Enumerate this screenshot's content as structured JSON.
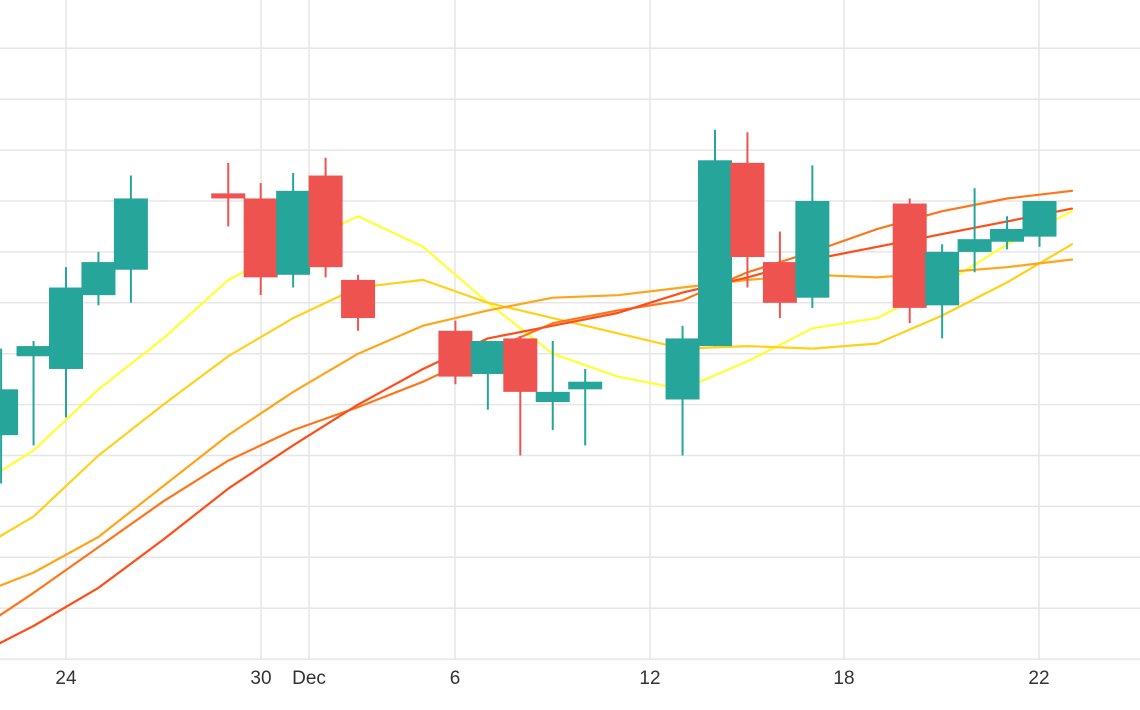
{
  "chart_data": {
    "type": "candlestick",
    "title": "",
    "xlabel": "",
    "ylabel": "",
    "grid": true,
    "x_tick_labels": [
      "24",
      "30",
      "Dec",
      "6",
      "12",
      "18",
      "22"
    ],
    "colors": {
      "up": "#26a69a",
      "down": "#ef5350",
      "grid": "#e6e6e6",
      "background": "#ffffff"
    },
    "candles": [
      {
        "date": "2021-11-22",
        "open": 5.4,
        "high": 7.1,
        "low": 4.45,
        "close": 6.3
      },
      {
        "date": "2021-11-23",
        "open": 6.95,
        "high": 7.25,
        "low": 5.2,
        "close": 7.15
      },
      {
        "date": "2021-11-24",
        "open": 6.7,
        "high": 8.7,
        "low": 5.75,
        "close": 8.3
      },
      {
        "date": "2021-11-25",
        "open": 8.15,
        "high": 9.0,
        "low": 7.95,
        "close": 8.8
      },
      {
        "date": "2021-11-26",
        "open": 8.65,
        "high": 10.5,
        "low": 8.0,
        "close": 10.05
      },
      {
        "date": "2021-11-29",
        "open": 10.15,
        "high": 10.75,
        "low": 9.5,
        "close": 10.05
      },
      {
        "date": "2021-11-30",
        "open": 10.05,
        "high": 10.35,
        "low": 8.15,
        "close": 8.5
      },
      {
        "date": "2021-12-01",
        "open": 8.55,
        "high": 10.55,
        "low": 8.3,
        "close": 10.2
      },
      {
        "date": "2021-12-02",
        "open": 10.5,
        "high": 10.85,
        "low": 8.5,
        "close": 8.7
      },
      {
        "date": "2021-12-03",
        "open": 8.45,
        "high": 8.55,
        "low": 7.45,
        "close": 7.7
      },
      {
        "date": "2021-12-06",
        "open": 7.45,
        "high": 7.65,
        "low": 6.4,
        "close": 6.55
      },
      {
        "date": "2021-12-07",
        "open": 6.6,
        "high": 7.25,
        "low": 5.9,
        "close": 7.25
      },
      {
        "date": "2021-12-08",
        "open": 7.3,
        "high": 7.35,
        "low": 5.0,
        "close": 6.25
      },
      {
        "date": "2021-12-09",
        "open": 6.05,
        "high": 7.25,
        "low": 5.5,
        "close": 6.25
      },
      {
        "date": "2021-12-10",
        "open": 6.3,
        "high": 6.7,
        "low": 5.2,
        "close": 6.45
      },
      {
        "date": "2021-12-13",
        "open": 6.1,
        "high": 7.55,
        "low": 5.0,
        "close": 7.3
      },
      {
        "date": "2021-12-14",
        "open": 7.15,
        "high": 11.4,
        "low": 7.15,
        "close": 10.8
      },
      {
        "date": "2021-12-15",
        "open": 10.75,
        "high": 11.35,
        "low": 8.3,
        "close": 8.9
      },
      {
        "date": "2021-12-16",
        "open": 8.8,
        "high": 9.4,
        "low": 7.7,
        "close": 8.0
      },
      {
        "date": "2021-12-17",
        "open": 8.1,
        "high": 10.7,
        "low": 7.9,
        "close": 10.0
      },
      {
        "date": "2021-12-20",
        "open": 9.95,
        "high": 10.05,
        "low": 7.6,
        "close": 7.9
      },
      {
        "date": "2021-12-21",
        "open": 7.95,
        "high": 9.15,
        "low": 7.3,
        "close": 9.0
      },
      {
        "date": "2021-12-22",
        "open": 9.0,
        "high": 10.25,
        "low": 8.6,
        "close": 9.25
      },
      {
        "date": "2021-12-23",
        "open": 9.2,
        "high": 9.7,
        "low": 9.05,
        "close": 9.45
      },
      {
        "date": "2021-12-24",
        "open": 9.3,
        "high": 9.95,
        "low": 9.1,
        "close": 10.0
      }
    ],
    "series": [
      {
        "color": "#ffff33",
        "x": [
          "2021-11-21",
          "2021-11-23",
          "2021-11-25",
          "2021-11-27",
          "2021-11-29",
          "2021-12-01",
          "2021-12-03",
          "2021-12-05",
          "2021-12-07",
          "2021-12-09",
          "2021-12-11",
          "2021-12-13",
          "2021-12-15",
          "2021-12-17",
          "2021-12-19",
          "2021-12-21",
          "2021-12-23",
          "2021-12-25"
        ],
        "y": [
          4.3,
          5.1,
          6.3,
          7.3,
          8.45,
          9.1,
          9.7,
          9.1,
          8.0,
          7.0,
          6.55,
          6.3,
          6.85,
          7.5,
          7.7,
          8.35,
          9.15,
          9.8
        ]
      },
      {
        "color": "#ffd11a",
        "x": [
          "2021-11-21",
          "2021-11-23",
          "2021-11-25",
          "2021-11-27",
          "2021-11-29",
          "2021-12-01",
          "2021-12-03",
          "2021-12-05",
          "2021-12-07",
          "2021-12-09",
          "2021-12-11",
          "2021-12-13",
          "2021-12-15",
          "2021-12-17",
          "2021-12-19",
          "2021-12-21",
          "2021-12-23",
          "2021-12-25"
        ],
        "y": [
          3.05,
          3.8,
          5.0,
          6.0,
          6.95,
          7.7,
          8.3,
          8.45,
          8.0,
          7.7,
          7.4,
          7.1,
          7.15,
          7.1,
          7.2,
          7.75,
          8.4,
          9.15
        ]
      },
      {
        "color": "#ffa51a",
        "x": [
          "2021-11-21",
          "2021-11-23",
          "2021-11-25",
          "2021-11-27",
          "2021-11-29",
          "2021-12-01",
          "2021-12-03",
          "2021-12-05",
          "2021-12-07",
          "2021-12-09",
          "2021-12-11",
          "2021-12-13",
          "2021-12-15",
          "2021-12-17",
          "2021-12-19",
          "2021-12-21",
          "2021-12-23",
          "2021-12-25"
        ],
        "y": [
          2.2,
          2.7,
          3.4,
          4.4,
          5.4,
          6.25,
          7.0,
          7.55,
          7.85,
          8.1,
          8.15,
          8.3,
          8.45,
          8.55,
          8.5,
          8.6,
          8.7,
          8.85
        ]
      },
      {
        "color": "#ff751a",
        "x": [
          "2021-11-21",
          "2021-11-23",
          "2021-11-25",
          "2021-11-27",
          "2021-11-29",
          "2021-12-01",
          "2021-12-03",
          "2021-12-05",
          "2021-12-07",
          "2021-12-09",
          "2021-12-11",
          "2021-12-13",
          "2021-12-15",
          "2021-12-17",
          "2021-12-19",
          "2021-12-21",
          "2021-12-23",
          "2021-12-25"
        ],
        "y": [
          1.45,
          2.3,
          3.2,
          4.1,
          4.9,
          5.5,
          5.95,
          6.45,
          7.05,
          7.6,
          7.85,
          8.05,
          8.6,
          9.0,
          9.45,
          9.8,
          10.05,
          10.2
        ]
      },
      {
        "color": "#ff4d1a",
        "x": [
          "2021-11-21",
          "2021-11-23",
          "2021-11-25",
          "2021-11-27",
          "2021-11-29",
          "2021-12-01",
          "2021-12-03",
          "2021-12-05",
          "2021-12-07",
          "2021-12-09",
          "2021-12-11",
          "2021-12-13",
          "2021-12-15",
          "2021-12-17",
          "2021-12-19",
          "2021-12-21",
          "2021-12-23",
          "2021-12-25"
        ],
        "y": [
          1.0,
          1.65,
          2.4,
          3.35,
          4.35,
          5.2,
          6.0,
          6.7,
          7.3,
          7.55,
          7.8,
          8.2,
          8.5,
          8.85,
          9.1,
          9.35,
          9.6,
          9.85
        ]
      }
    ]
  }
}
